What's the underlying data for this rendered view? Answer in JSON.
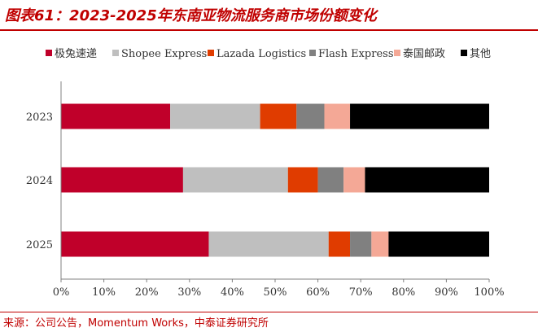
{
  "header": {
    "title": "图表61：2023-2025年东南亚物流服务商市场份额变化"
  },
  "footer": {
    "source": "来源：公司公告，Momentum Works，中泰证券研究所"
  },
  "chart_data": {
    "type": "bar",
    "orientation": "horizontal",
    "stacked": true,
    "percent_stacked": true,
    "categories": [
      "2023",
      "2024",
      "2025"
    ],
    "series": [
      {
        "name": "极兔速递",
        "color": "#c0002a",
        "values": [
          25.5,
          28.5,
          34.5
        ]
      },
      {
        "name": "Shopee Express",
        "color": "#bfbfbf",
        "values": [
          21,
          24.5,
          28
        ]
      },
      {
        "name": "Lazada Logistics",
        "color": "#e03c00",
        "values": [
          8.5,
          7,
          5
        ]
      },
      {
        "name": "Flash Express",
        "color": "#808080",
        "values": [
          6.5,
          6,
          5
        ]
      },
      {
        "name": "泰国邮政",
        "color": "#f4a896",
        "values": [
          6,
          5,
          4
        ]
      },
      {
        "name": "其他",
        "color": "#000000",
        "values": [
          32.5,
          29,
          23.5
        ]
      }
    ],
    "xlim": [
      0,
      100
    ],
    "xticks": [
      "0%",
      "10%",
      "20%",
      "30%",
      "40%",
      "50%",
      "60%",
      "70%",
      "80%",
      "90%",
      "100%"
    ],
    "grid": false,
    "legend_position": "top"
  }
}
